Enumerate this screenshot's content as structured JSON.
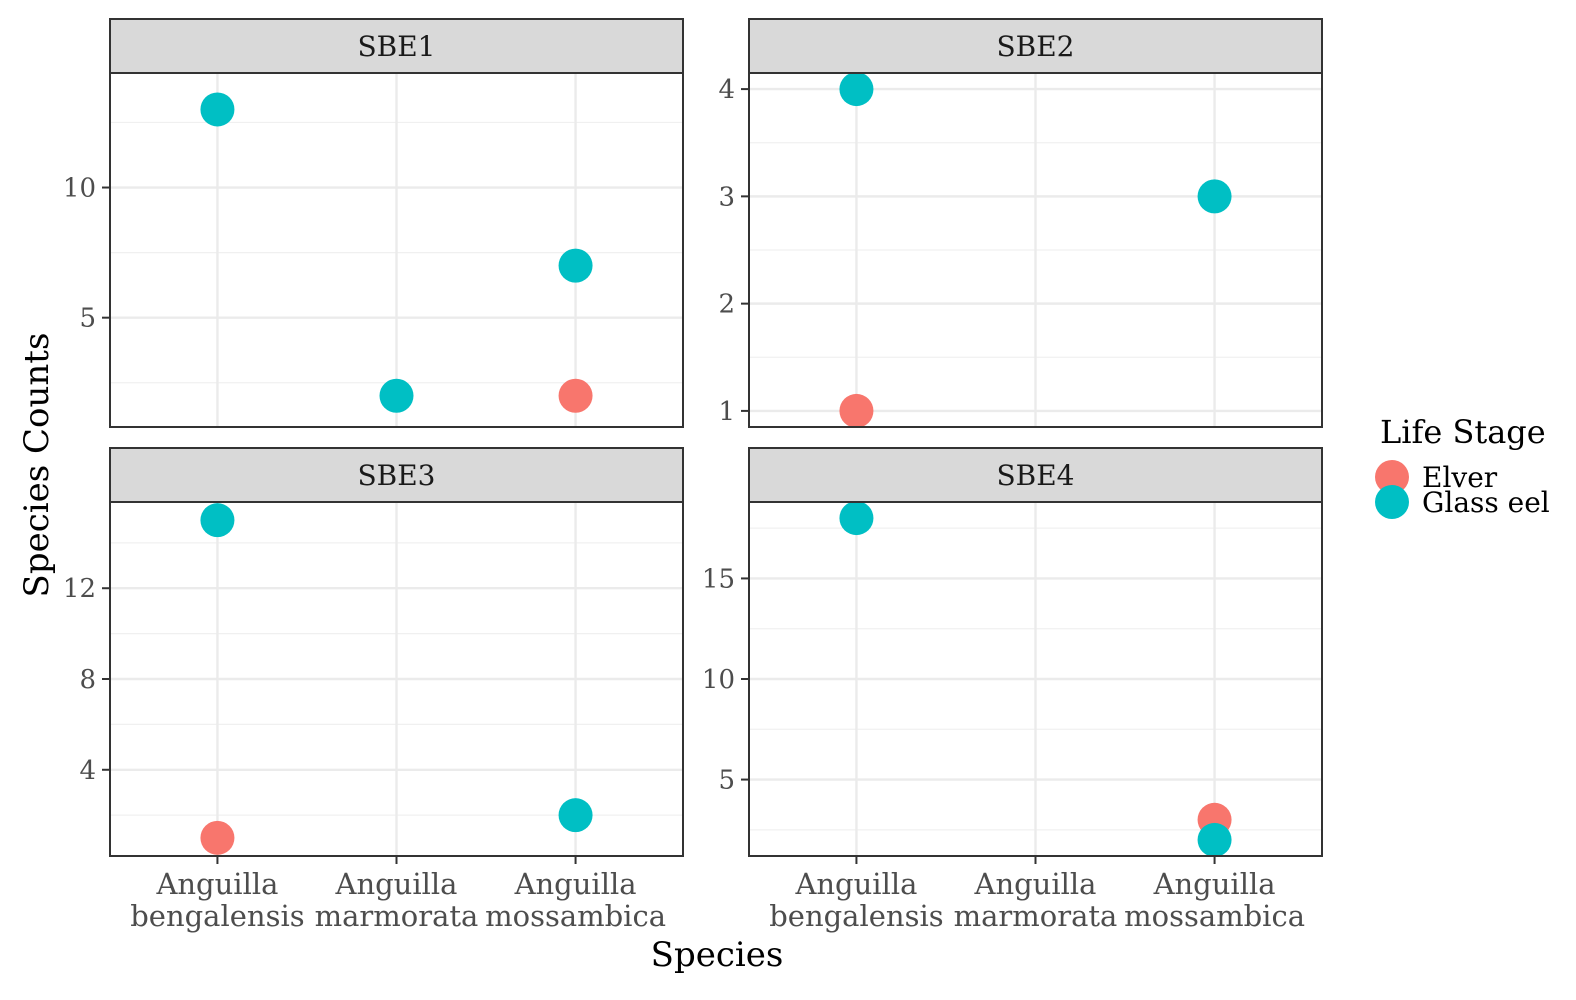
{
  "chart_data": {
    "type": "scatter",
    "layout": "facet-grid-2x2",
    "xlabel": "Species",
    "ylabel": "Species Counts",
    "categories": [
      [
        "Anguilla",
        "bengalensis"
      ],
      [
        "Anguilla",
        "marmorata"
      ],
      [
        "Anguilla",
        "mossambica"
      ]
    ],
    "legend": {
      "title": "Life Stage",
      "position": "right",
      "items": [
        {
          "name": "Elver",
          "color": "#F8766D"
        },
        {
          "name": "Glass eel",
          "color": "#00BFC4"
        }
      ]
    },
    "panels": [
      {
        "title": "SBE1",
        "ylim": [
          0.8,
          14.4
        ],
        "yticks": [
          5,
          10
        ],
        "series": [
          {
            "name": "Elver",
            "points": [
              {
                "x": 2,
                "y": 2
              }
            ]
          },
          {
            "name": "Glass eel",
            "points": [
              {
                "x": 0,
                "y": 13
              },
              {
                "x": 1,
                "y": 2
              },
              {
                "x": 2,
                "y": 7
              }
            ]
          }
        ]
      },
      {
        "title": "SBE2",
        "ylim": [
          0.85,
          4.15
        ],
        "yticks": [
          1,
          2,
          3,
          4
        ],
        "series": [
          {
            "name": "Elver",
            "points": [
              {
                "x": 0,
                "y": 1
              }
            ]
          },
          {
            "name": "Glass eel",
            "points": [
              {
                "x": 0,
                "y": 4
              },
              {
                "x": 2,
                "y": 3
              }
            ]
          }
        ]
      },
      {
        "title": "SBE3",
        "ylim": [
          0.2,
          15.8
        ],
        "yticks": [
          4,
          8,
          12
        ],
        "series": [
          {
            "name": "Elver",
            "points": [
              {
                "x": 0,
                "y": 1
              }
            ]
          },
          {
            "name": "Glass eel",
            "points": [
              {
                "x": 0,
                "y": 15
              },
              {
                "x": 2,
                "y": 2
              }
            ]
          }
        ]
      },
      {
        "title": "SBE4",
        "ylim": [
          1.2,
          18.8
        ],
        "yticks": [
          5,
          10,
          15
        ],
        "series": [
          {
            "name": "Elver",
            "points": [
              {
                "x": 2,
                "y": 3
              }
            ]
          },
          {
            "name": "Glass eel",
            "points": [
              {
                "x": 0,
                "y": 18
              },
              {
                "x": 2,
                "y": 2
              }
            ]
          }
        ]
      }
    ],
    "grid": true,
    "theme": "bw"
  }
}
